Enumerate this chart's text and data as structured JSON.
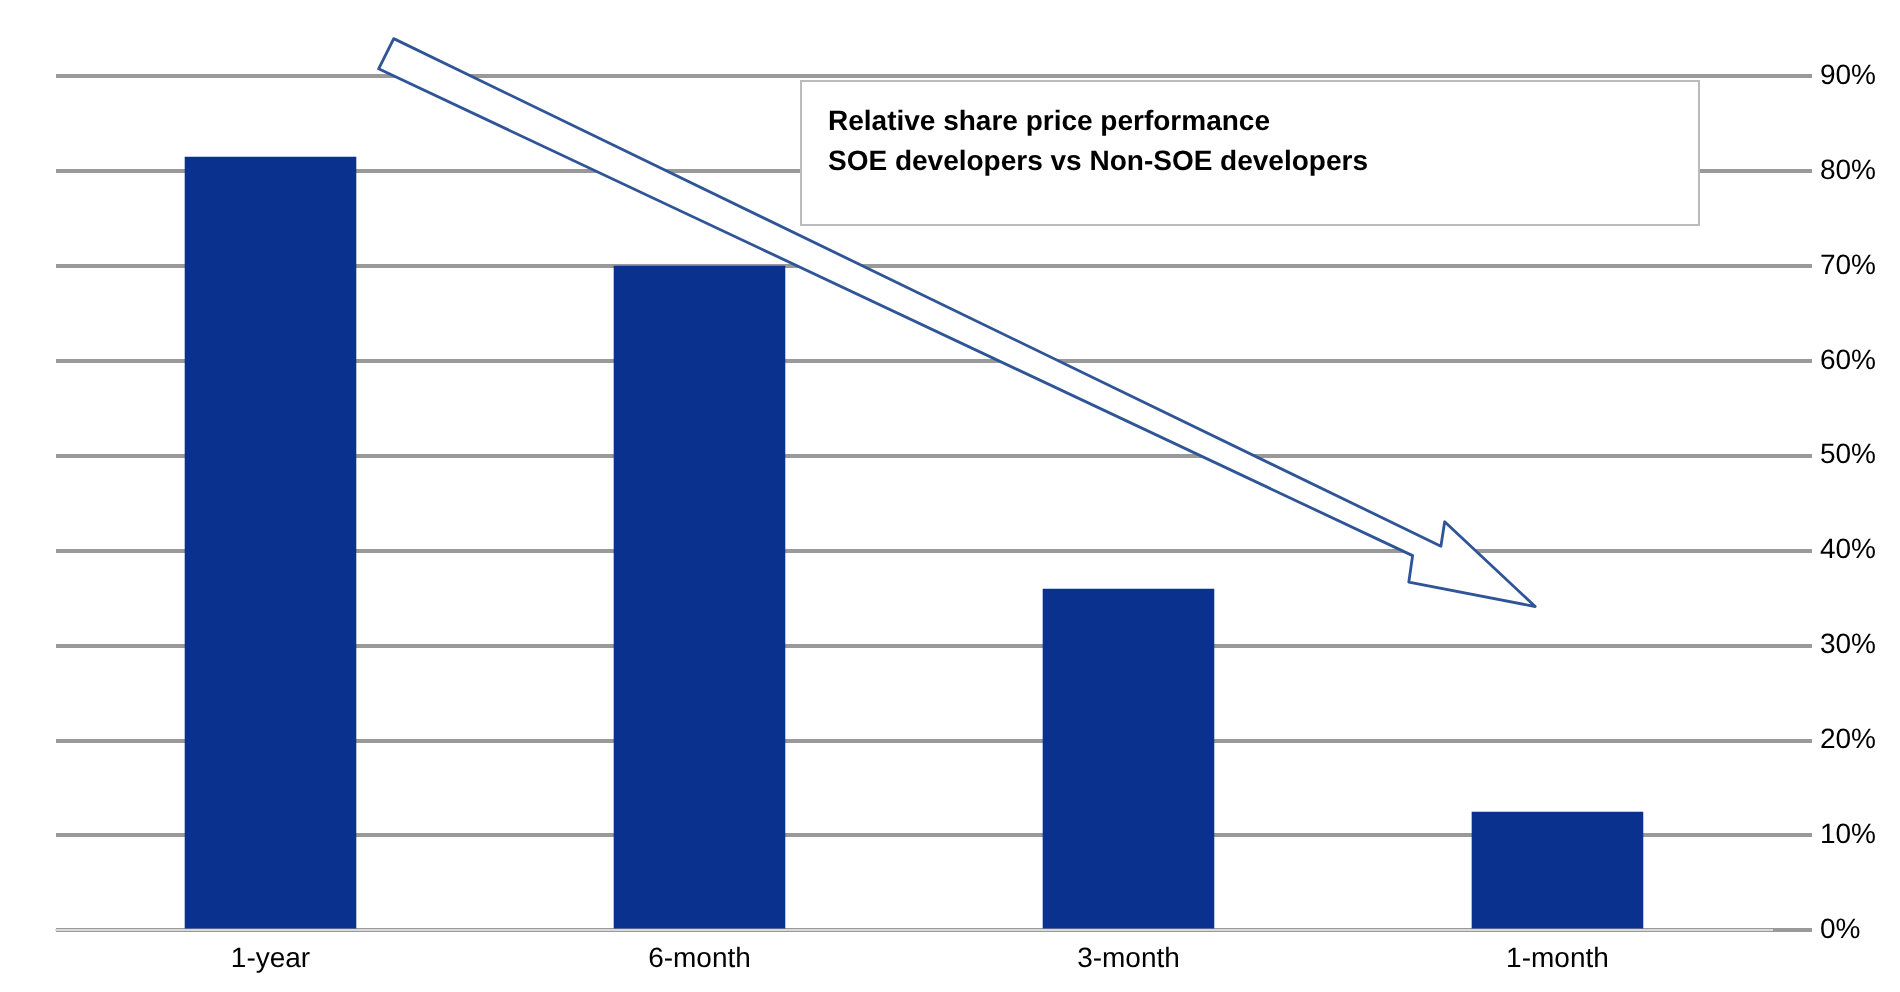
{
  "chart_data": {
    "type": "bar",
    "categories": [
      "1-year",
      "6-month",
      "3-month",
      "1-month"
    ],
    "values": [
      81.5,
      70,
      36,
      12.5
    ],
    "color": "#0b318f",
    "ylim": [
      0,
      90
    ],
    "yticks": [
      {
        "value": 0,
        "label": "0%"
      },
      {
        "value": 10,
        "label": "10%"
      },
      {
        "value": 20,
        "label": "20%"
      },
      {
        "value": 30,
        "label": "30%"
      },
      {
        "value": 40,
        "label": "40%"
      },
      {
        "value": 50,
        "label": "50%"
      },
      {
        "value": 60,
        "label": "60%"
      },
      {
        "value": 70,
        "label": "70%"
      },
      {
        "value": 80,
        "label": "80%"
      },
      {
        "value": 90,
        "label": "90%"
      }
    ],
    "grid": "y",
    "legend": false,
    "annotations": [
      "Relative share price performance\nSOE developers vs Non-SOE developers"
    ]
  }
}
